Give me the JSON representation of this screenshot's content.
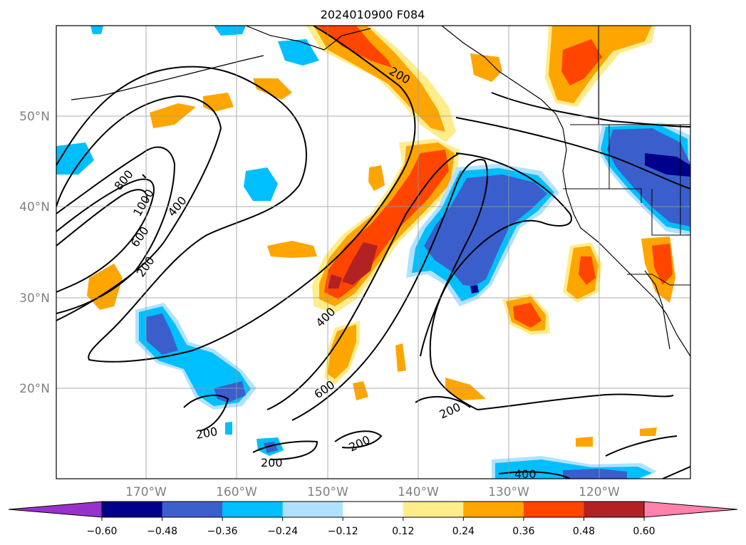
{
  "title": "2024010900 F084",
  "lat_labels": [
    "50°N",
    "40°N",
    "30°N",
    "20°N"
  ],
  "lon_labels": [
    "170°W",
    "160°W",
    "150°W",
    "140°W",
    "130°W",
    "120°W"
  ],
  "contour_labels": {
    "c200_a": "200",
    "c200_b": "200",
    "c200_c": "200",
    "c200_d": "200",
    "c200_e": "200",
    "c200_f": "200",
    "c400_a": "400",
    "c400_b": "400",
    "c400_c": "400",
    "c600_a": "600",
    "c600_b": "600",
    "c800": "800",
    "c1000": "1000"
  },
  "colorbar": {
    "ticks": [
      "−0.60",
      "−0.48",
      "−0.36",
      "−0.24",
      "−0.12",
      "0.12",
      "0.24",
      "0.36",
      "0.48",
      "0.60"
    ],
    "colors": [
      "#9932cc",
      "#00008b",
      "#3a5fcd",
      "#00bfff",
      "#b0e2ff",
      "#ffffff",
      "#ffec8b",
      "#ffa500",
      "#ff4500",
      "#b22222",
      "#ff82ab"
    ]
  }
}
